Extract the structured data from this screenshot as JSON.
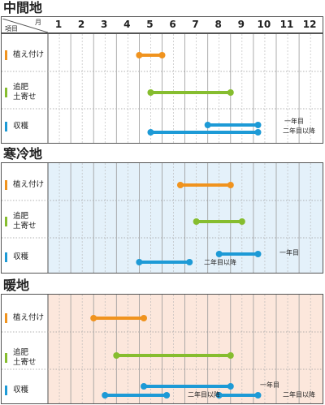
{
  "header": {
    "month_label": "月",
    "item_label": "項目",
    "months": [
      "1",
      "2",
      "3",
      "4",
      "5",
      "6",
      "7",
      "8",
      "9",
      "10",
      "11",
      "12"
    ]
  },
  "regions": [
    {
      "title": "中間地",
      "tint": "#ffffff",
      "rows": [
        {
          "label": "植え付け",
          "color": "#f0931e"
        },
        {
          "label": "追肥\n土寄せ",
          "color": "#86bd2f"
        },
        {
          "label": "収穫",
          "color": "#1d9ad6"
        }
      ],
      "notes": [
        "一年目",
        "二年目以降"
      ]
    },
    {
      "title": "寒冷地",
      "tint": "#e4f1fa",
      "rows": [
        {
          "label": "植え付け",
          "color": "#f0931e"
        },
        {
          "label": "追肥\n土寄せ",
          "color": "#86bd2f"
        },
        {
          "label": "収穫",
          "color": "#1d9ad6"
        }
      ],
      "notes": [
        "一年目",
        "二年目以降"
      ]
    },
    {
      "title": "暖地",
      "tint": "#fce7dc",
      "rows": [
        {
          "label": "植え付け",
          "color": "#f0931e"
        },
        {
          "label": "追肥\n土寄せ",
          "color": "#86bd2f"
        },
        {
          "label": "収穫",
          "color": "#1d9ad6"
        }
      ],
      "notes": [
        "一年目",
        "二年目以降"
      ]
    }
  ],
  "chart_data": {
    "type": "gantt",
    "x_unit": "month",
    "x_range": [
      1,
      12
    ],
    "colors": {
      "planting": "#f0931e",
      "fertilize": "#86bd2f",
      "harvest": "#1d9ad6"
    },
    "regions": [
      {
        "name": "中間地",
        "bars": [
          {
            "task": "植え付け",
            "start": 5.0,
            "end": 6.0
          },
          {
            "task": "追肥 土寄せ",
            "start": 5.5,
            "end": 9.0
          },
          {
            "task": "収穫",
            "start": 8.0,
            "end": 10.2,
            "note": "一年目"
          },
          {
            "task": "収穫",
            "start": 5.5,
            "end": 10.2,
            "note": "二年目以降"
          }
        ]
      },
      {
        "name": "寒冷地",
        "bars": [
          {
            "task": "植え付け",
            "start": 6.8,
            "end": 9.0
          },
          {
            "task": "追肥 土寄せ",
            "start": 7.5,
            "end": 9.5
          },
          {
            "task": "収穫",
            "start": 8.5,
            "end": 10.2,
            "note": "一年目"
          },
          {
            "task": "収穫",
            "start": 5.0,
            "end": 7.2,
            "note": "二年目以降"
          }
        ]
      },
      {
        "name": "暖地",
        "bars": [
          {
            "task": "植え付け",
            "start": 3.0,
            "end": 5.2
          },
          {
            "task": "追肥 土寄せ",
            "start": 4.0,
            "end": 9.0
          },
          {
            "task": "収穫",
            "start": 5.2,
            "end": 9.0,
            "note": "一年目"
          },
          {
            "task": "収穫",
            "start": 3.5,
            "end": 6.2,
            "note": "二年目以降"
          },
          {
            "task": "収穫",
            "start": 8.5,
            "end": 10.2,
            "note": "二年目以降"
          }
        ]
      }
    ]
  }
}
